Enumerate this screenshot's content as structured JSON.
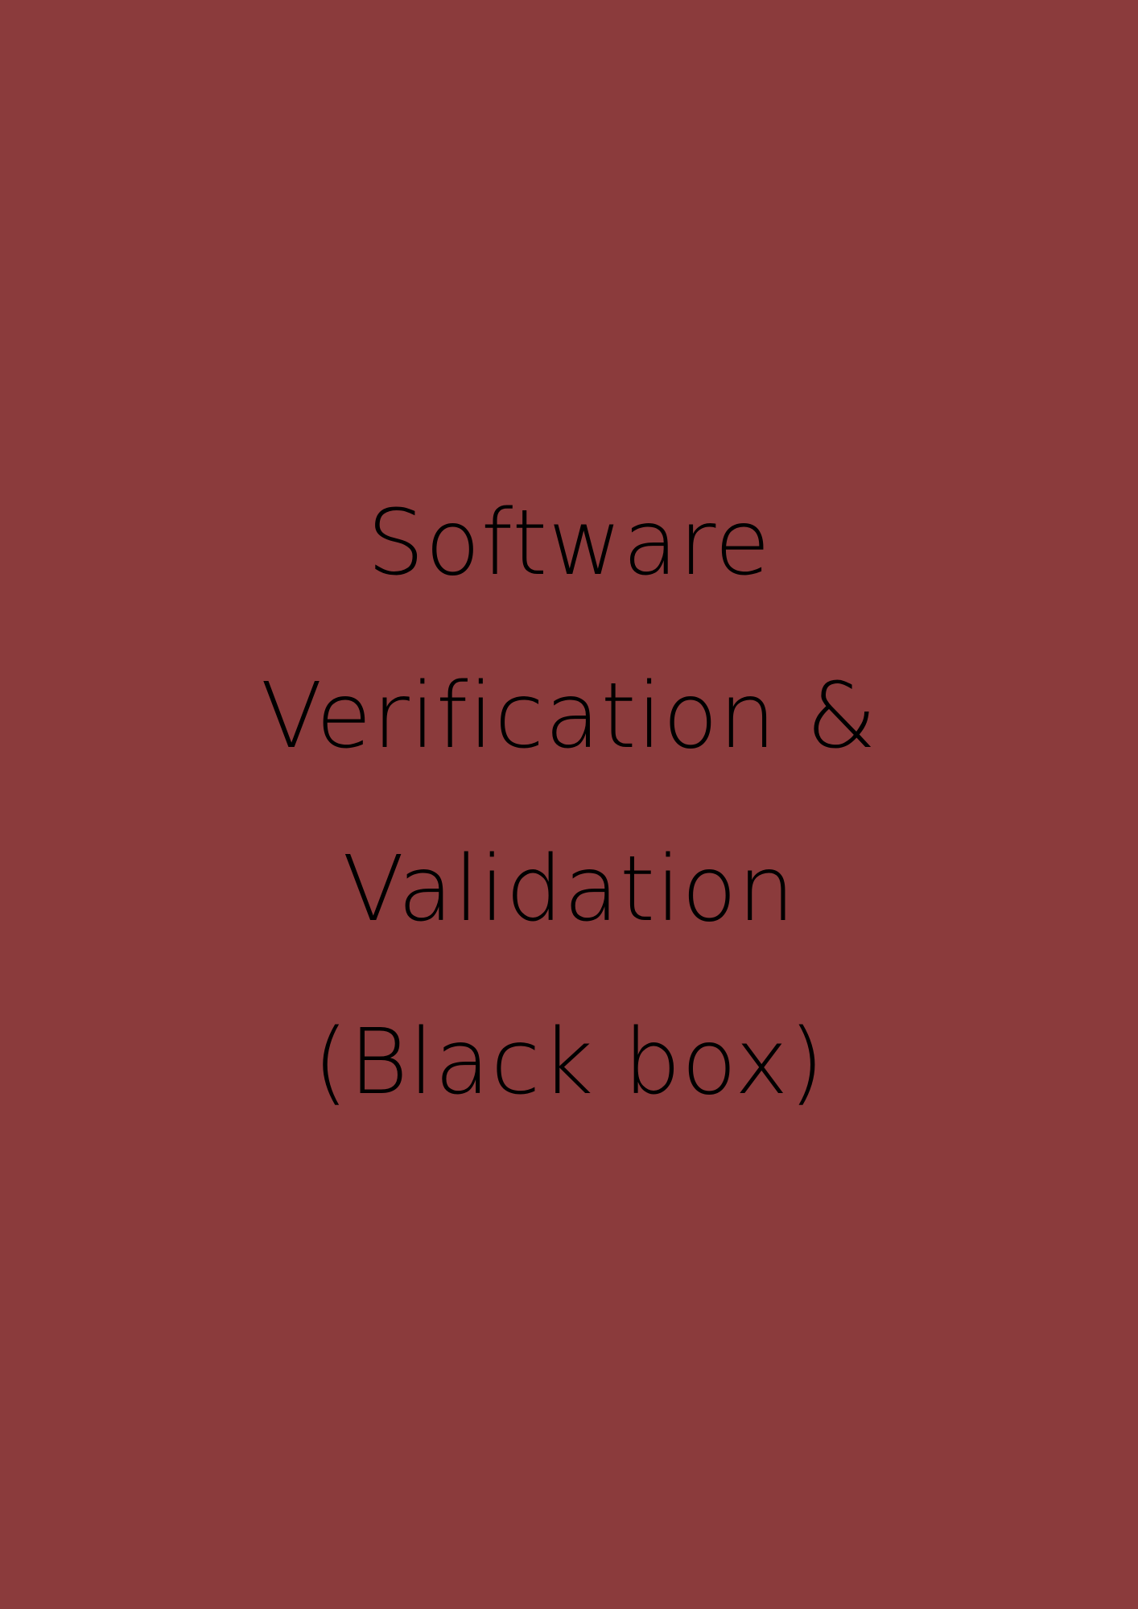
{
  "cover": {
    "background_color": "#8b3b3c",
    "text_color": "#000000",
    "title_lines": [
      "Software",
      "Verification &",
      "Validation",
      "(Black box)"
    ]
  }
}
